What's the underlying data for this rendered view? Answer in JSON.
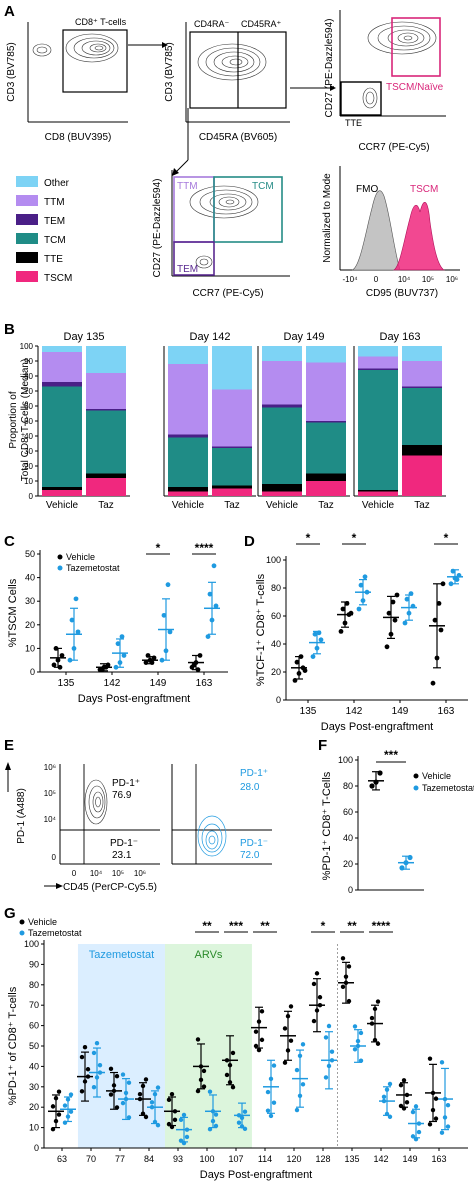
{
  "figure": {
    "panel_letters": [
      "A",
      "B",
      "C",
      "D",
      "E",
      "F",
      "G"
    ]
  },
  "colors": {
    "vehicle": "#000000",
    "tazemetostat": "#1f9ae0",
    "Other": "#7dd3f5",
    "TTM": "#b48cf0",
    "TEM": "#4a1f87",
    "TCM": "#1f8c86",
    "TTE": "#000000",
    "TSCM": "#f0287e",
    "tscm_gate": "#d9267a",
    "ttm_gate": "#a77bdc",
    "tcm_gate": "#258c86",
    "tem_gate": "#5a2a90",
    "fmo_fill": "#c4c4c4",
    "taz_period": "#dbeeff",
    "arv_period": "#dcf5dc"
  },
  "panelA": {
    "plot1": {
      "xlabel": "CD8 (BUV395)",
      "ylabel": "CD3 (BV785)",
      "gate": "CD8⁺ T-cells"
    },
    "plot2": {
      "xlabel": "CD45RA (BV605)",
      "ylabel": "CD3 (BV785)",
      "gate_left": "CD4RA⁻",
      "gate_right": "CD45RA⁺"
    },
    "plot3": {
      "xlabel": "CCR7 (PE-Cy5)",
      "ylabel": "CD27 (PE-Dazzle594)",
      "gate_tscm": "TSCM/Naïve",
      "gate_tte": "TTE"
    },
    "plot4": {
      "xlabel": "CCR7 (PE-Cy5)",
      "ylabel": "CD27 (PE-Dazzle594)",
      "gate_ttm": "TTM",
      "gate_tcm": "TCM",
      "gate_tem": "TEM"
    },
    "histogram": {
      "xlabel": "CD95 (BUV737)",
      "ylabel": "Normalized to Mode",
      "fmo_label": "FMO",
      "tscm_label": "TSCM",
      "ticks": [
        "-10⁴",
        "0",
        "10⁴",
        "10⁵",
        "10⁶"
      ]
    },
    "legend": [
      "Other",
      "TTM",
      "TEM",
      "TCM",
      "TTE",
      "TSCM"
    ]
  },
  "chart_data": [
    {
      "panel": "B",
      "type": "bar",
      "stacked": true,
      "ylabel_line1": "Proportion of",
      "ylabel_line2": "Total CD8⁺T-Cells (Median)",
      "ylim": [
        0,
        100
      ],
      "yticks": [
        "0",
        "10",
        "20",
        "30",
        "40",
        "50",
        "60",
        "70",
        "80",
        "90",
        "100"
      ],
      "day_labels": [
        "Day 135",
        "Day 142",
        "Day 149",
        "Day 163"
      ],
      "categories": [
        "Vehicle",
        "Taz"
      ],
      "stack_order": [
        "TSCM",
        "TTE",
        "TCM",
        "TEM",
        "TTM",
        "Other"
      ],
      "groups": [
        {
          "day": "Day 135",
          "bars": [
            {
              "label": "Vehicle",
              "TSCM": 4,
              "TTE": 2,
              "TCM": 67,
              "TEM": 3,
              "TTM": 20,
              "Other": 4
            },
            {
              "label": "Taz",
              "TSCM": 12,
              "TTE": 3,
              "TCM": 42,
              "TEM": 1,
              "TTM": 24,
              "Other": 18
            }
          ]
        },
        {
          "day": "Day 142",
          "bars": [
            {
              "label": "Vehicle",
              "TSCM": 3,
              "TTE": 3,
              "TCM": 33,
              "TEM": 2,
              "TTM": 47,
              "Other": 12
            },
            {
              "label": "Taz",
              "TSCM": 5,
              "TTE": 2,
              "TCM": 25,
              "TEM": 1,
              "TTM": 38,
              "Other": 29
            }
          ]
        },
        {
          "day": "Day 149",
          "bars": [
            {
              "label": "Vehicle",
              "TSCM": 3,
              "TTE": 5,
              "TCM": 51,
              "TEM": 2,
              "TTM": 29,
              "Other": 10
            },
            {
              "label": "Taz",
              "TSCM": 10,
              "TTE": 5,
              "TCM": 34,
              "TEM": 1,
              "TTM": 39,
              "Other": 11
            }
          ]
        },
        {
          "day": "Day 163",
          "bars": [
            {
              "label": "Vehicle",
              "TSCM": 3,
              "TTE": 1,
              "TCM": 80,
              "TEM": 1,
              "TTM": 8,
              "Other": 7
            },
            {
              "label": "Taz",
              "TSCM": 27,
              "TTE": 7,
              "TCM": 38,
              "TEM": 1,
              "TTM": 17,
              "Other": 10
            }
          ]
        }
      ]
    },
    {
      "panel": "C",
      "type": "scatter",
      "ylabel": "%TSCM Cells",
      "xlabel": "Days Post-engraftment",
      "ylim": [
        0,
        50
      ],
      "yticks": [
        "0",
        "10",
        "20",
        "30",
        "40",
        "50"
      ],
      "categories": [
        "135",
        "142",
        "149",
        "163"
      ],
      "significance": [
        "",
        "",
        "*",
        "****"
      ],
      "series": [
        {
          "name": "Vehicle",
          "mean": [
            6,
            2,
            5,
            4
          ],
          "sd": [
            4,
            1.5,
            1.5,
            3
          ],
          "points": [
            [
              3,
              5,
              7,
              10,
              2
            ],
            [
              1,
              2,
              3,
              1,
              2
            ],
            [
              4,
              5,
              6,
              7,
              4
            ],
            [
              2,
              4,
              7,
              3,
              1
            ]
          ]
        },
        {
          "name": "Tazemetostat",
          "mean": [
            16,
            8,
            18,
            27
          ],
          "sd": [
            11,
            6,
            13,
            11
          ],
          "points": [
            [
              5,
              10,
              17,
              22,
              31
            ],
            [
              2,
              4,
              7,
              12,
              15
            ],
            [
              5,
              9,
              17,
              24,
              37
            ],
            [
              15,
              22,
              28,
              33,
              45
            ]
          ]
        }
      ]
    },
    {
      "panel": "D",
      "type": "scatter",
      "ylabel": "%TCF-1⁺ CD8⁺ T-cells",
      "xlabel": "Days Post-engraftment",
      "ylim": [
        0,
        100
      ],
      "yticks": [
        "0",
        "20",
        "40",
        "60",
        "80",
        "100"
      ],
      "categories": [
        "135",
        "142",
        "149",
        "163"
      ],
      "significance": [
        "*",
        "*",
        "",
        "*"
      ],
      "series": [
        {
          "name": "Vehicle",
          "mean": [
            23,
            61,
            59,
            53
          ],
          "sd": [
            8,
            9,
            15,
            30
          ],
          "points": [
            [
              14,
              19,
              23,
              27,
              31,
              21
            ],
            [
              49,
              55,
              61,
              65,
              69,
              62
            ],
            [
              38,
              47,
              57,
              62,
              70,
              75
            ],
            [
              12,
              30,
              50,
              57,
              69,
              83
            ]
          ]
        },
        {
          "name": "Tazemetostat",
          "mean": [
            41,
            77,
            66,
            88
          ],
          "sd": [
            8,
            9,
            9,
            5
          ],
          "points": [
            [
              31,
              37,
              43,
              47,
              48
            ],
            [
              65,
              71,
              77,
              82,
              88
            ],
            [
              55,
              62,
              67,
              72,
              76
            ],
            [
              83,
              87,
              89,
              92,
              86
            ]
          ]
        }
      ]
    },
    {
      "panel": "F",
      "type": "scatter",
      "ylabel": "%PD-1⁺ CD8⁺ T-Cells",
      "ylim": [
        0,
        100
      ],
      "yticks": [
        "0",
        "20",
        "40",
        "60",
        "80",
        "100"
      ],
      "significance": [
        "***"
      ],
      "series": [
        {
          "name": "Vehicle",
          "mean": 84,
          "sd": 7,
          "points": [
            80,
            83,
            90
          ]
        },
        {
          "name": "Tazemetostat",
          "mean": 21,
          "sd": 5,
          "points": [
            17,
            21,
            25
          ]
        }
      ]
    },
    {
      "panel": "G",
      "type": "scatter",
      "ylabel": "%PD-1⁺ of CD8⁺ T-cells",
      "xlabel": "Days Post-engraftment",
      "ylim": [
        0,
        100
      ],
      "yticks": [
        "0",
        "10",
        "20",
        "30",
        "40",
        "50",
        "60",
        "70",
        "80",
        "90",
        "100"
      ],
      "categories": [
        "63",
        "70",
        "77",
        "84",
        "93",
        "100",
        "107",
        "114",
        "120",
        "128",
        "135",
        "142",
        "149",
        "163"
      ],
      "significance": [
        "",
        "",
        "",
        "",
        "",
        "**",
        "***",
        "**",
        "",
        "*",
        "**",
        "****",
        "",
        ""
      ],
      "period_labels": {
        "taz": "Tazemetostat",
        "arv": "ARVs"
      },
      "series": [
        {
          "name": "Vehicle",
          "mean": [
            18,
            35,
            28,
            24,
            18,
            40,
            43,
            59,
            55,
            70,
            81,
            61,
            26,
            27
          ],
          "sd": [
            8,
            12,
            9,
            8,
            7,
            11,
            12,
            10,
            12,
            13,
            10,
            9,
            6,
            14
          ]
        },
        {
          "name": "Tazemetostat",
          "mean": [
            19,
            37,
            24,
            20,
            9,
            18,
            16,
            30,
            34,
            43,
            50,
            23,
            12,
            24
          ],
          "sd": [
            6,
            12,
            10,
            8,
            6,
            8,
            6,
            13,
            14,
            14,
            8,
            7,
            7,
            15
          ]
        }
      ]
    }
  ],
  "panelE": {
    "xlabel": "CD45 (PerCP-Cy5.5)",
    "ylabel": "PD-1 (A488)",
    "xticks": [
      "0",
      "10⁴",
      "10⁵",
      "10⁶"
    ],
    "yticks": [
      "10⁶",
      "10⁵",
      "10⁴",
      "0"
    ],
    "vehicle": {
      "pos_label": "PD-1⁺",
      "pos_value": "76.9",
      "neg_label": "PD-1⁻",
      "neg_value": "23.1"
    },
    "taz": {
      "pos_label": "PD-1⁺",
      "pos_value": "28.0",
      "neg_label": "PD-1⁻",
      "neg_value": "72.0"
    }
  },
  "legend": {
    "vehicle": "Vehicle",
    "tazemetostat": "Tazemetostat"
  }
}
